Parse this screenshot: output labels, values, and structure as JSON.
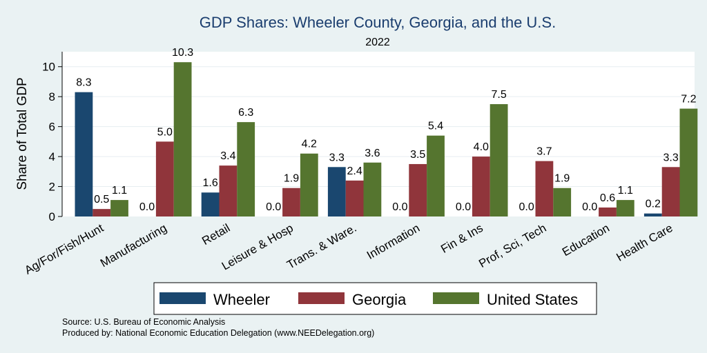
{
  "chart_data": {
    "type": "bar",
    "title": "GDP Shares: Wheeler County, Georgia, and the U.S.",
    "subtitle": "2022",
    "xlabel": "",
    "ylabel": "Share of Total GDP",
    "ylim": [
      0,
      11
    ],
    "yticks": [
      0,
      2,
      4,
      6,
      8,
      10
    ],
    "categories": [
      "Ag/For/Fish/Hunt",
      "Manufacturing",
      "Retail",
      "Leisure & Hosp",
      "Trans. & Ware.",
      "Information",
      "Fin & Ins",
      "Prof, Sci, Tech",
      "Education",
      "Health Care"
    ],
    "series": [
      {
        "name": "Wheeler",
        "color": "#1a476f",
        "values": [
          8.3,
          0.0,
          1.6,
          0.0,
          3.3,
          0.0,
          0.0,
          0.0,
          0.0,
          0.2
        ]
      },
      {
        "name": "Georgia",
        "color": "#90353b",
        "values": [
          0.5,
          5.0,
          3.4,
          1.9,
          2.4,
          3.5,
          4.0,
          3.7,
          0.6,
          3.3
        ]
      },
      {
        "name": "United States",
        "color": "#55752f",
        "values": [
          1.1,
          10.3,
          6.3,
          4.2,
          3.6,
          5.4,
          7.5,
          1.9,
          1.1,
          7.2
        ]
      }
    ],
    "legend_position": "bottom",
    "grid": true
  },
  "source_lines": [
    "Source: U.S. Bureau of Economic Analysis",
    "Produced by: National Economic Education Delegation (www.NEEDelegation.org)"
  ]
}
